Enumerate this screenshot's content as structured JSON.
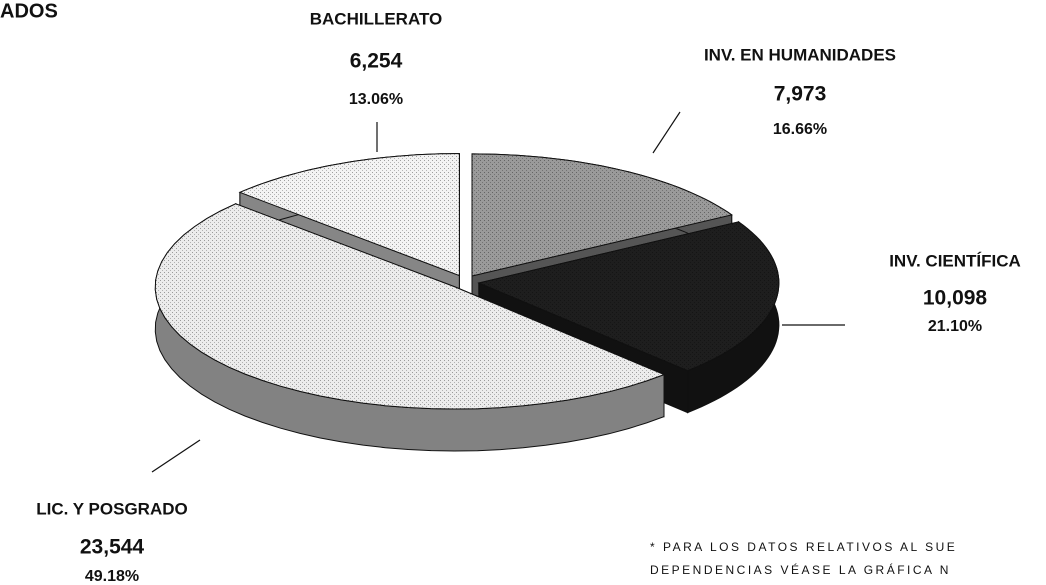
{
  "title": "ADOS",
  "chart_data": {
    "type": "pie3d",
    "categories": [
      "INV. EN HUMANIDADES",
      "INV. CIENTÍFICA",
      "LIC. Y POSGRADO",
      "BACHILLERATO"
    ],
    "values": [
      7973,
      10098,
      23544,
      6254
    ],
    "value_labels": [
      "7,973",
      "10,098",
      "23,544",
      "6,254"
    ],
    "percents": [
      16.66,
      21.1,
      49.18,
      13.06
    ],
    "percent_labels": [
      "16.66%",
      "21.10%",
      "49.18%",
      "13.06%"
    ],
    "colors": [
      "#9a9a9a",
      "#1e1e1e",
      "#ececec",
      "#f3f3f3"
    ]
  },
  "footnote": [
    "* PARA LOS DATOS RELATIVOS AL SUE",
    "DEPENDENCIAS VÉASE LA GRÁFICA N"
  ]
}
